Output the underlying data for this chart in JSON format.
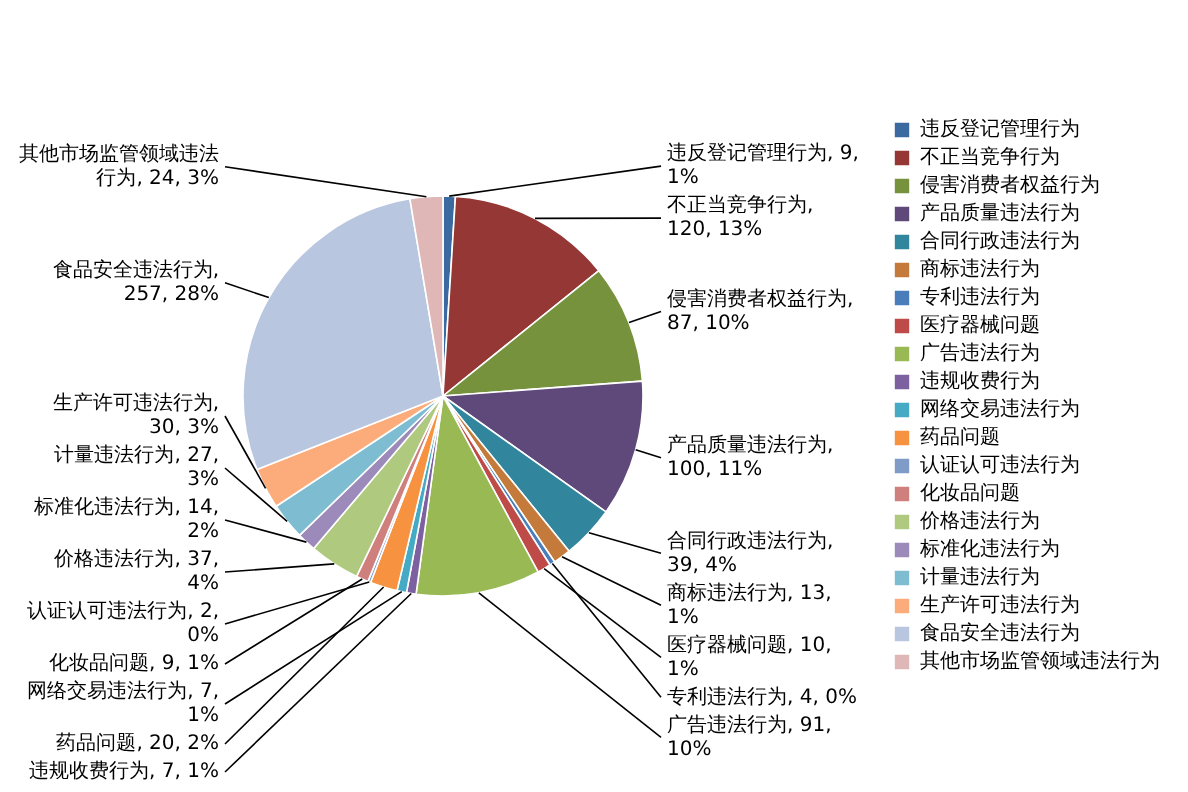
{
  "chart_data": {
    "type": "pie",
    "categories": [
      "违反登记管理行为",
      "不正当竞争行为",
      "侵害消费者权益行为",
      "产品质量违法行为",
      "合同行政违法行为",
      "商标违法行为",
      "专利违法行为",
      "医疗器械问题",
      "广告违法行为",
      "违规收费行为",
      "网络交易违法行为",
      "药品问题",
      "认证认可违法行为",
      "化妆品问题",
      "价格违法行为",
      "标准化违法行为",
      "计量违法行为",
      "生产许可违法行为",
      "食品安全违法行为",
      "其他市场监管领域违法行为"
    ],
    "values": [
      9,
      120,
      87,
      100,
      39,
      13,
      4,
      10,
      91,
      7,
      7,
      20,
      2,
      9,
      37,
      14,
      27,
      30,
      257,
      24
    ],
    "colors": [
      "#3b6aa0",
      "#953735",
      "#76923c",
      "#5f497a",
      "#31859c",
      "#c47a3a",
      "#4a7ebb",
      "#be4b48",
      "#98b954",
      "#7d60a0",
      "#46aac5",
      "#f69240",
      "#7f9bc8",
      "#cf807d",
      "#afc97e",
      "#9c8abb",
      "#7ebcd2",
      "#fbac7a",
      "#b8c6e0",
      "#dfb7b6"
    ],
    "value_labels": [
      "违反登记管理行为, 9, 1%",
      "不正当竞争行为, 120, 13%",
      "侵害消费者权益行为, 87, 10%",
      "产品质量违法行为, 100, 11%",
      "合同行政违法行为, 39, 4%",
      "商标违法行为, 13, 1%",
      "专利违法行为, 4, 0%",
      "医疗器械问题, 10, 1%",
      "广告违法行为, 91, 10%",
      "违规收费行为, 7, 1%",
      "网络交易违法行为, 7, 1%",
      "药品问题, 20, 2%",
      "认证认可违法行为, 2, 0%",
      "化妆品问题, 9, 1%",
      "价格违法行为, 37, 4%",
      "标准化违法行为, 14, 2%",
      "计量违法行为, 27, 3%",
      "生产许可违法行为, 30, 3%",
      "食品安全违法行为, 257, 28%",
      "其他市场监管领域违法行为, 24, 3%"
    ],
    "legend": "right"
  }
}
